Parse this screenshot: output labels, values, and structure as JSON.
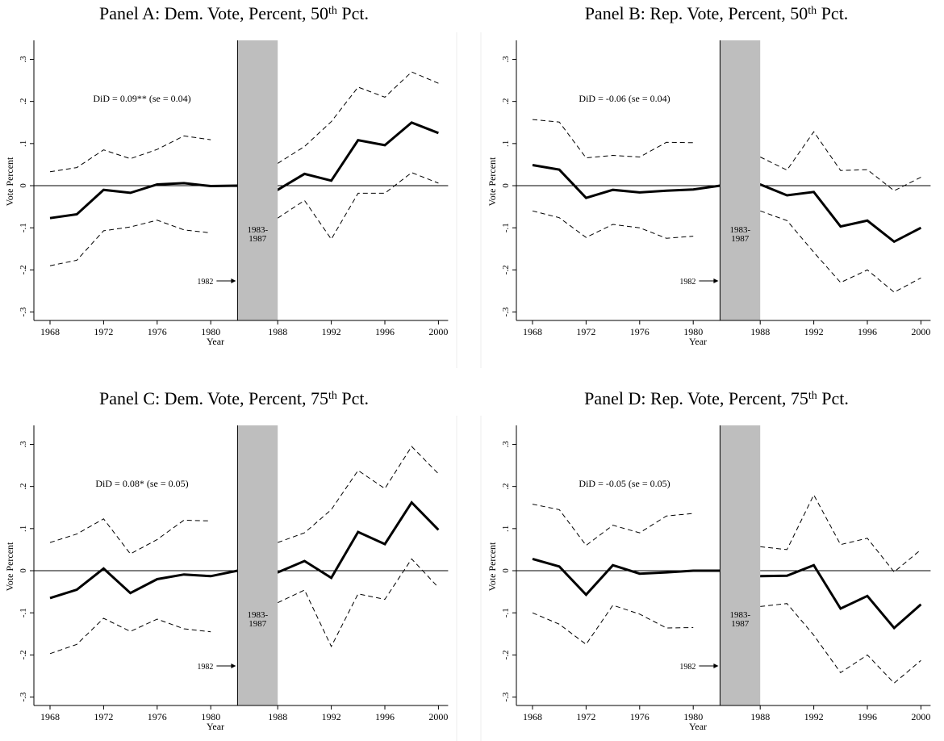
{
  "chart_data": [
    {
      "type": "line",
      "title": [
        "Panel A: Dem. Vote, Percent, 50",
        "th",
        " Pct."
      ],
      "annotation": "DiD = 0.09** (se = 0.04)",
      "shade_label": [
        "1983-",
        "1987"
      ],
      "arrow_label": "1982",
      "shade": [
        1982,
        1988
      ],
      "zero_line": true,
      "xlabel": "Year",
      "ylabel": "Vote Percent",
      "x": [
        1968,
        1970,
        1972,
        1974,
        1976,
        1978,
        1980,
        1982,
        1988,
        1990,
        1992,
        1994,
        1996,
        1998,
        2000
      ],
      "xticks": [
        1968,
        1972,
        1976,
        1980,
        1988,
        1992,
        1996,
        2000
      ],
      "ylim": [
        -0.32,
        0.345
      ],
      "yticks": [
        {
          "value": -0.3,
          "label": "-.3"
        },
        {
          "value": -0.2,
          "label": "-.2"
        },
        {
          "value": -0.1,
          "label": "-.1"
        },
        0,
        {
          "value": 0.1,
          "label": ".1"
        },
        {
          "value": 0.2,
          "label": ".2"
        },
        {
          "value": 0.3,
          "label": ".3"
        }
      ],
      "series": [
        {
          "color": "#000000",
          "style": "solid",
          "values": [
            -0.077,
            -0.068,
            -0.01,
            -0.017,
            0.003,
            0.006,
            -0.001,
            0,
            -0.01,
            0.028,
            0.012,
            0.108,
            0.096,
            0.15,
            0.125
          ]
        },
        {
          "color": "#000000",
          "style": "dashed",
          "values": [
            0.033,
            0.043,
            0.085,
            0.064,
            0.086,
            0.118,
            0.109,
            null,
            0.053,
            0.093,
            0.152,
            0.234,
            0.21,
            0.27,
            0.243
          ]
        },
        {
          "color": "#000000",
          "style": "dashed",
          "values": [
            -0.19,
            -0.177,
            -0.107,
            -0.098,
            -0.082,
            -0.105,
            -0.112,
            null,
            -0.077,
            -0.035,
            -0.127,
            -0.018,
            -0.018,
            0.031,
            0.006
          ]
        }
      ]
    },
    {
      "type": "line",
      "title": [
        "Panel B: Rep. Vote, Percent, 50",
        "th",
        " Pct."
      ],
      "annotation": "DiD = -0.06 (se = 0.04)",
      "shade_label": [
        "1983-",
        "1987"
      ],
      "arrow_label": "1982",
      "shade": [
        1982,
        1988
      ],
      "zero_line": true,
      "xlabel": "Year",
      "ylabel": "Vote Percent",
      "x": [
        1968,
        1970,
        1972,
        1974,
        1976,
        1978,
        1980,
        1982,
        1988,
        1990,
        1992,
        1994,
        1996,
        1998,
        2000
      ],
      "xticks": [
        1968,
        1972,
        1976,
        1980,
        1988,
        1992,
        1996,
        2000
      ],
      "ylim": [
        -0.32,
        0.345
      ],
      "yticks": [
        {
          "value": -0.3,
          "label": "-.3"
        },
        {
          "value": -0.2,
          "label": "-.2"
        },
        {
          "value": -0.1,
          "label": "-.1"
        },
        0,
        {
          "value": 0.1,
          "label": ".1"
        },
        {
          "value": 0.2,
          "label": ".2"
        },
        {
          "value": 0.3,
          "label": ".3"
        }
      ],
      "series": [
        {
          "color": "#000000",
          "style": "solid",
          "values": [
            0.049,
            0.038,
            -0.029,
            -0.01,
            -0.016,
            -0.012,
            -0.009,
            0,
            0.003,
            -0.023,
            -0.015,
            -0.097,
            -0.083,
            -0.133,
            -0.1
          ]
        },
        {
          "color": "#000000",
          "style": "dashed",
          "values": [
            0.157,
            0.151,
            0.066,
            0.072,
            0.068,
            0.103,
            0.102,
            null,
            0.068,
            0.037,
            0.128,
            0.036,
            0.038,
            -0.012,
            0.02
          ]
        },
        {
          "color": "#000000",
          "style": "dashed",
          "values": [
            -0.06,
            -0.076,
            -0.123,
            -0.092,
            -0.1,
            -0.125,
            -0.12,
            null,
            -0.06,
            -0.083,
            -0.158,
            -0.23,
            -0.2,
            -0.253,
            -0.219
          ]
        }
      ]
    },
    {
      "type": "line",
      "title": [
        "Panel C: Dem. Vote, Percent, 75",
        "th",
        " Pct."
      ],
      "annotation": "DiD = 0.08* (se = 0.05)",
      "shade_label": [
        "1983-",
        "1987"
      ],
      "arrow_label": "1982",
      "shade": [
        1982,
        1988
      ],
      "zero_line": true,
      "xlabel": "Year",
      "ylabel": "Vote Percent",
      "x": [
        1968,
        1970,
        1972,
        1974,
        1976,
        1978,
        1980,
        1982,
        1988,
        1990,
        1992,
        1994,
        1996,
        1998,
        2000
      ],
      "xticks": [
        1968,
        1972,
        1976,
        1980,
        1988,
        1992,
        1996,
        2000
      ],
      "ylim": [
        -0.32,
        0.345
      ],
      "yticks": [
        {
          "value": -0.3,
          "label": "-.3"
        },
        {
          "value": -0.2,
          "label": "-.2"
        },
        {
          "value": -0.1,
          "label": "-.1"
        },
        0,
        {
          "value": 0.1,
          "label": ".1"
        },
        {
          "value": 0.2,
          "label": ".2"
        },
        {
          "value": 0.3,
          "label": ".3"
        }
      ],
      "series": [
        {
          "color": "#000000",
          "style": "solid",
          "values": [
            -0.065,
            -0.045,
            0.005,
            -0.053,
            -0.02,
            -0.009,
            -0.013,
            0,
            -0.004,
            0.023,
            -0.017,
            0.092,
            0.063,
            0.162,
            0.097
          ]
        },
        {
          "color": "#000000",
          "style": "dashed",
          "values": [
            0.067,
            0.087,
            0.123,
            0.04,
            0.074,
            0.12,
            0.118,
            null,
            0.067,
            0.09,
            0.145,
            0.238,
            0.195,
            0.295,
            0.23
          ]
        },
        {
          "color": "#000000",
          "style": "dashed",
          "values": [
            -0.197,
            -0.175,
            -0.113,
            -0.144,
            -0.115,
            -0.138,
            -0.145,
            null,
            -0.076,
            -0.046,
            -0.18,
            -0.055,
            -0.068,
            0.028,
            -0.04
          ]
        }
      ]
    },
    {
      "type": "line",
      "title": [
        "Panel D: Rep. Vote, Percent, 75",
        "th",
        " Pct."
      ],
      "annotation": "DiD = -0.05 (se = 0.05)",
      "shade_label": [
        "1983-",
        "1987"
      ],
      "arrow_label": "1982",
      "shade": [
        1982,
        1988
      ],
      "zero_line": true,
      "xlabel": "Year",
      "ylabel": "Vote Percent",
      "x": [
        1968,
        1970,
        1972,
        1974,
        1976,
        1978,
        1980,
        1982,
        1988,
        1990,
        1992,
        1994,
        1996,
        1998,
        2000
      ],
      "xticks": [
        1968,
        1972,
        1976,
        1980,
        1988,
        1992,
        1996,
        2000
      ],
      "ylim": [
        -0.32,
        0.345
      ],
      "yticks": [
        {
          "value": -0.3,
          "label": "-.3"
        },
        {
          "value": -0.2,
          "label": "-.2"
        },
        {
          "value": -0.1,
          "label": "-.1"
        },
        0,
        {
          "value": 0.1,
          "label": ".1"
        },
        {
          "value": 0.2,
          "label": ".2"
        },
        {
          "value": 0.3,
          "label": ".3"
        }
      ],
      "series": [
        {
          "color": "#000000",
          "style": "solid",
          "values": [
            0.028,
            0.01,
            -0.057,
            0.013,
            -0.007,
            -0.004,
            0,
            0,
            -0.013,
            -0.012,
            0.013,
            -0.09,
            -0.06,
            -0.136,
            -0.08
          ]
        },
        {
          "color": "#000000",
          "style": "dashed",
          "values": [
            0.158,
            0.145,
            0.06,
            0.108,
            0.09,
            0.13,
            0.136,
            null,
            0.057,
            0.05,
            0.18,
            0.062,
            0.077,
            -0.003,
            0.05
          ]
        },
        {
          "color": "#000000",
          "style": "dashed",
          "values": [
            -0.1,
            -0.127,
            -0.175,
            -0.082,
            -0.103,
            -0.136,
            -0.135,
            null,
            -0.085,
            -0.078,
            -0.153,
            -0.242,
            -0.2,
            -0.267,
            -0.213
          ]
        }
      ]
    }
  ]
}
